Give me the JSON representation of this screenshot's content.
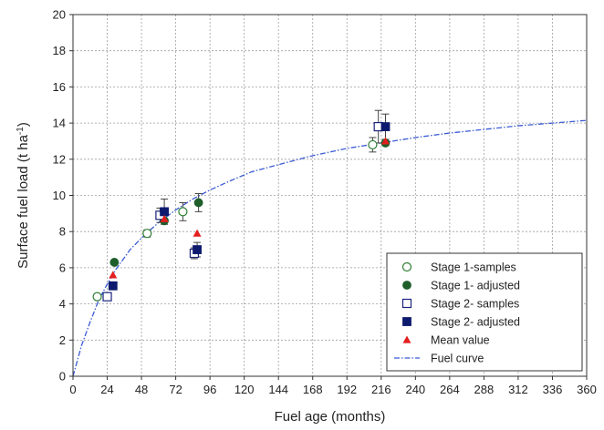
{
  "chart_data": {
    "type": "scatter",
    "xlabel": "Fuel age (months)",
    "ylabel": "Surface fuel load (t ha",
    "ylabel_sup": "-1",
    "ylabel_close": ")",
    "xlim": [
      0,
      360
    ],
    "ylim": [
      0,
      20
    ],
    "xticks": [
      0,
      24,
      48,
      72,
      96,
      120,
      144,
      168,
      192,
      216,
      240,
      264,
      288,
      312,
      336,
      360
    ],
    "yticks": [
      0,
      2,
      4,
      6,
      8,
      10,
      12,
      14,
      16,
      18,
      20
    ],
    "grid": true,
    "legend_position": "bottom-right",
    "series": [
      {
        "name": "Stage 1-samples",
        "marker": "circle-open",
        "color": "#2e7d32",
        "points": [
          {
            "x": 17,
            "y": 4.4,
            "err": 0.1
          },
          {
            "x": 52,
            "y": 7.9,
            "err": 0.2
          },
          {
            "x": 77,
            "y": 9.1,
            "err": 0.5
          },
          {
            "x": 210,
            "y": 12.8,
            "err": 0.4
          }
        ]
      },
      {
        "name": "Stage 1- adjusted",
        "marker": "circle-filled",
        "color": "#1e5e2a",
        "points": [
          {
            "x": 29,
            "y": 6.3,
            "err": 0
          },
          {
            "x": 64,
            "y": 8.6,
            "err": 0
          },
          {
            "x": 88,
            "y": 9.6,
            "err": 0.5
          },
          {
            "x": 219,
            "y": 12.9,
            "err": 0
          }
        ]
      },
      {
        "name": "Stage 2- samples",
        "marker": "square-open",
        "color": "#1a237e",
        "points": [
          {
            "x": 24,
            "y": 4.4,
            "err": 0
          },
          {
            "x": 61,
            "y": 8.9,
            "err": 0.4
          },
          {
            "x": 85,
            "y": 6.8,
            "err": 0.3
          },
          {
            "x": 214,
            "y": 13.8,
            "err": 0.9
          }
        ]
      },
      {
        "name": "Stage 2- adjusted",
        "marker": "square-filled",
        "color": "#0d1a6e",
        "points": [
          {
            "x": 28,
            "y": 5.0,
            "err": 0
          },
          {
            "x": 64,
            "y": 9.1,
            "err": 0.7
          },
          {
            "x": 87,
            "y": 7.0,
            "err": 0.4
          },
          {
            "x": 219,
            "y": 13.8,
            "err": 0.7
          }
        ]
      },
      {
        "name": "Mean value",
        "marker": "triangle-filled",
        "color": "#e41e1e",
        "points": [
          {
            "x": 28,
            "y": 5.6,
            "err": 0
          },
          {
            "x": 64,
            "y": 8.7,
            "err": 0
          },
          {
            "x": 87,
            "y": 7.9,
            "err": 0
          },
          {
            "x": 219,
            "y": 13.0,
            "err": 0
          }
        ]
      },
      {
        "name": "Fuel curve",
        "marker": "line-dashdot",
        "color": "#3b5bd6",
        "curve": [
          {
            "x": 0,
            "y": 0.0
          },
          {
            "x": 6,
            "y": 1.7
          },
          {
            "x": 12,
            "y": 3.0
          },
          {
            "x": 18,
            "y": 4.2
          },
          {
            "x": 24,
            "y": 5.1
          },
          {
            "x": 30,
            "y": 5.9
          },
          {
            "x": 40,
            "y": 7.0
          },
          {
            "x": 50,
            "y": 7.8
          },
          {
            "x": 60,
            "y": 8.5
          },
          {
            "x": 72,
            "y": 9.2
          },
          {
            "x": 84,
            "y": 9.8
          },
          {
            "x": 96,
            "y": 10.3
          },
          {
            "x": 110,
            "y": 10.8
          },
          {
            "x": 125,
            "y": 11.3
          },
          {
            "x": 144,
            "y": 11.7
          },
          {
            "x": 168,
            "y": 12.2
          },
          {
            "x": 192,
            "y": 12.6
          },
          {
            "x": 216,
            "y": 12.9
          },
          {
            "x": 240,
            "y": 13.2
          },
          {
            "x": 264,
            "y": 13.45
          },
          {
            "x": 288,
            "y": 13.65
          },
          {
            "x": 312,
            "y": 13.85
          },
          {
            "x": 336,
            "y": 14.0
          },
          {
            "x": 360,
            "y": 14.15
          }
        ]
      }
    ]
  }
}
